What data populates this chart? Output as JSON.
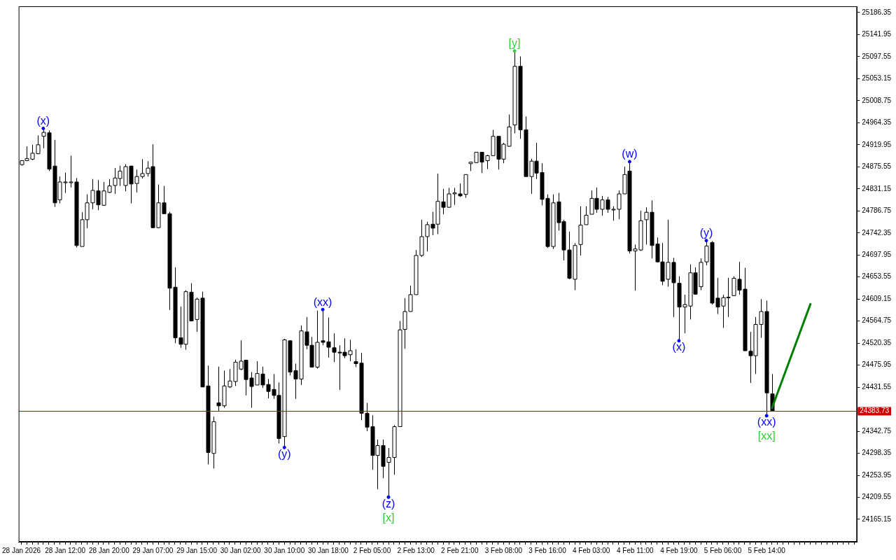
{
  "chart_data": {
    "type": "candlestick",
    "categories": [
      "28 Jan 2026",
      null,
      null,
      null,
      null,
      null,
      null,
      null,
      "28 Jan 12:00",
      null,
      null,
      null,
      null,
      null,
      null,
      null,
      "28 Jan 20:00",
      null,
      null,
      null,
      null,
      null,
      null,
      null,
      "29 Jan 07:00",
      null,
      null,
      null,
      null,
      null,
      null,
      null,
      "29 Jan 15:00",
      null,
      null,
      null,
      null,
      null,
      null,
      null,
      "30 Jan 02:00",
      null,
      null,
      null,
      null,
      null,
      null,
      null,
      "30 Jan 10:00",
      null,
      null,
      null,
      null,
      null,
      null,
      null,
      "30 Jan 18:00",
      null,
      null,
      null,
      null,
      null,
      null,
      null,
      "2 Feb 05:00",
      null,
      null,
      null,
      null,
      null,
      null,
      null,
      "2 Feb 13:00",
      null,
      null,
      null,
      null,
      null,
      null,
      null,
      "2 Feb 21:00",
      null,
      null,
      null,
      null,
      null,
      null,
      null,
      "3 Feb 08:00",
      null,
      null,
      null,
      null,
      null,
      null,
      null,
      "3 Feb 16:00",
      null,
      null,
      null,
      null,
      null,
      null,
      null,
      "4 Feb 03:00",
      null,
      null,
      null,
      null,
      null,
      null,
      null,
      "4 Feb 11:00",
      null,
      null,
      null,
      null,
      null,
      null,
      null,
      "4 Feb 19:00",
      null,
      null,
      null,
      null,
      null,
      null,
      null,
      "5 Feb 06:00",
      null,
      null,
      null,
      null,
      null,
      null,
      null,
      "5 Feb 14:00",
      null,
      null,
      null,
      null,
      null,
      null,
      null,
      null,
      null,
      null,
      null,
      null,
      null,
      null,
      null,
      null
    ],
    "ohlc": [
      [
        24880,
        24889,
        24878,
        24888
      ],
      [
        24888,
        24917,
        24887,
        24892
      ],
      [
        24891,
        24920,
        24889,
        24903
      ],
      [
        24902,
        24939,
        24901,
        24920
      ],
      [
        24937,
        24953,
        24913,
        24945
      ],
      [
        24944,
        24949,
        24867,
        24871
      ],
      [
        24877,
        24930,
        24795,
        24803
      ],
      [
        24809,
        24856,
        24802,
        24845
      ],
      [
        24845,
        24864,
        24823,
        24845
      ],
      [
        24845,
        24898,
        24834,
        24845
      ],
      [
        24845,
        24853,
        24713,
        24717
      ],
      [
        24715,
        24784,
        24715,
        24769
      ],
      [
        24769,
        24820,
        24752,
        24803
      ],
      [
        24803,
        24851,
        24790,
        24828
      ],
      [
        24827,
        24849,
        24788,
        24799
      ],
      [
        24798,
        24845,
        24798,
        24827
      ],
      [
        24824,
        24851,
        24823,
        24837
      ],
      [
        24838,
        24873,
        24821,
        24853
      ],
      [
        24852,
        24878,
        24837,
        24867
      ],
      [
        24838,
        24881,
        24826,
        24876
      ],
      [
        24877,
        24878,
        24802,
        24841
      ],
      [
        24842,
        24870,
        24824,
        24856
      ],
      [
        24856,
        24891,
        24852,
        24862
      ],
      [
        24862,
        24887,
        24856,
        24873
      ],
      [
        24876,
        24921,
        24752,
        24753
      ],
      [
        24753,
        24840,
        24752,
        24803
      ],
      [
        24803,
        24837,
        24781,
        24781
      ],
      [
        24781,
        24785,
        24587,
        24631
      ],
      [
        24633,
        24673,
        24520,
        24531
      ],
      [
        24531,
        24594,
        24511,
        24518
      ],
      [
        24518,
        24627,
        24507,
        24624
      ],
      [
        24623,
        24641,
        24565,
        24565
      ],
      [
        24568,
        24612,
        24543,
        24609
      ],
      [
        24611,
        24624,
        24432,
        24432
      ],
      [
        24434,
        24475,
        24276,
        24300
      ],
      [
        24298,
        24372,
        24268,
        24362
      ],
      [
        24400,
        24473,
        24383,
        24394
      ],
      [
        24394,
        24465,
        24390,
        24434
      ],
      [
        24432,
        24468,
        24430,
        24444
      ],
      [
        24443,
        24487,
        24434,
        24482
      ],
      [
        24468,
        24526,
        24466,
        24484
      ],
      [
        24486,
        24487,
        24415,
        24447
      ],
      [
        24450,
        24462,
        24390,
        24433
      ],
      [
        24436,
        24484,
        24436,
        24459
      ],
      [
        24458,
        24473,
        24430,
        24436
      ],
      [
        24437,
        24448,
        24409,
        24423
      ],
      [
        24427,
        24458,
        24408,
        24415
      ],
      [
        24415,
        24441,
        24318,
        24328
      ],
      [
        24332,
        24529,
        24310,
        24527
      ],
      [
        24525,
        24526,
        24455,
        24462
      ],
      [
        24465,
        24479,
        24408,
        24448
      ],
      [
        24448,
        24556,
        24436,
        24545
      ],
      [
        24543,
        24573,
        24508,
        24516
      ],
      [
        24516,
        24533,
        24472,
        24472
      ],
      [
        24472,
        24586,
        24469,
        24522
      ],
      [
        24525,
        24588,
        24516,
        24522
      ],
      [
        24523,
        24572,
        24491,
        24512
      ],
      [
        24511,
        24540,
        24482,
        24502
      ],
      [
        24502,
        24516,
        24426,
        24501
      ],
      [
        24502,
        24530,
        24490,
        24495
      ],
      [
        24497,
        24527,
        24484,
        24505
      ],
      [
        24483,
        24508,
        24472,
        24479
      ],
      [
        24480,
        24501,
        24365,
        24379
      ],
      [
        24379,
        24400,
        24343,
        24351
      ],
      [
        24352,
        24375,
        24265,
        24294
      ],
      [
        24294,
        24326,
        24226,
        24314
      ],
      [
        24314,
        24326,
        24248,
        24272
      ],
      [
        24280,
        24309,
        24210,
        24290
      ],
      [
        24290,
        24355,
        24255,
        24352
      ],
      [
        24352,
        24565,
        24352,
        24547
      ],
      [
        24548,
        24611,
        24509,
        24584
      ],
      [
        24584,
        24636,
        24584,
        24618
      ],
      [
        24618,
        24708,
        24618,
        24697
      ],
      [
        24697,
        24769,
        24694,
        24735
      ],
      [
        24735,
        24765,
        24705,
        24759
      ],
      [
        24760,
        24785,
        24738,
        24752
      ],
      [
        24760,
        24862,
        24740,
        24806
      ],
      [
        24805,
        24831,
        24780,
        24794
      ],
      [
        24794,
        24833,
        24794,
        24821
      ],
      [
        24821,
        24833,
        24799,
        24823
      ],
      [
        24821,
        24842,
        24815,
        24817
      ],
      [
        24820,
        24860,
        24813,
        24860
      ],
      [
        24882,
        24885,
        24867,
        24885
      ],
      [
        24884,
        24905,
        24884,
        24905
      ],
      [
        24905,
        24905,
        24863,
        24885
      ],
      [
        24888,
        24900,
        24871,
        24898
      ],
      [
        24898,
        24950,
        24898,
        24937
      ],
      [
        24937,
        24937,
        24870,
        24891
      ],
      [
        24891,
        24924,
        24883,
        24921
      ],
      [
        24917,
        24981,
        24916,
        24956
      ],
      [
        24960,
        25109,
        24943,
        25078
      ],
      [
        25078,
        25098,
        24932,
        24950
      ],
      [
        24950,
        24977,
        24856,
        24856
      ],
      [
        24856,
        24892,
        24821,
        24887
      ],
      [
        24887,
        24924,
        24851,
        24863
      ],
      [
        24864,
        24883,
        24798,
        24810
      ],
      [
        24812,
        24820,
        24712,
        24715
      ],
      [
        24715,
        24820,
        24710,
        24803
      ],
      [
        24805,
        24823,
        24747,
        24763
      ],
      [
        24765,
        24769,
        24687,
        24708
      ],
      [
        24708,
        24745,
        24649,
        24651
      ],
      [
        24649,
        24722,
        24627,
        24717
      ],
      [
        24719,
        24796,
        24697,
        24758
      ],
      [
        24759,
        24796,
        24759,
        24778
      ],
      [
        24780,
        24828,
        24780,
        24812
      ],
      [
        24812,
        24834,
        24783,
        24790
      ],
      [
        24790,
        24817,
        24777,
        24809
      ],
      [
        24809,
        24815,
        24783,
        24790
      ],
      [
        24790,
        24796,
        24767,
        24790
      ],
      [
        24790,
        24828,
        24770,
        24821
      ],
      [
        24821,
        24876,
        24821,
        24860
      ],
      [
        24867,
        24886,
        24701,
        24706
      ],
      [
        24706,
        24719,
        24626,
        24710
      ],
      [
        24708,
        24787,
        24706,
        24767
      ],
      [
        24769,
        24794,
        24719,
        24784
      ],
      [
        24784,
        24808,
        24691,
        24717
      ],
      [
        24720,
        24733,
        24683,
        24684
      ],
      [
        24684,
        24722,
        24637,
        24645
      ],
      [
        24649,
        24769,
        24634,
        24683
      ],
      [
        24683,
        24692,
        24573,
        24642
      ],
      [
        24641,
        24655,
        24525,
        24593
      ],
      [
        24593,
        24618,
        24540,
        24598
      ],
      [
        24595,
        24679,
        24568,
        24662
      ],
      [
        24662,
        24673,
        24618,
        24619
      ],
      [
        24634,
        24691,
        24627,
        24683
      ],
      [
        24684,
        24727,
        24677,
        24716
      ],
      [
        24723,
        24726,
        24598,
        24601
      ],
      [
        24611,
        24652,
        24579,
        24593
      ],
      [
        24595,
        24618,
        24551,
        24612
      ],
      [
        24613,
        24652,
        24573,
        24613
      ],
      [
        24616,
        24655,
        24615,
        24651
      ],
      [
        24649,
        24684,
        24618,
        24627
      ],
      [
        24629,
        24672,
        24505,
        24505
      ],
      [
        24504,
        24543,
        24440,
        24495
      ],
      [
        24495,
        24573,
        24458,
        24558
      ],
      [
        24558,
        24609,
        24531,
        24584
      ],
      [
        24584,
        24606,
        24374,
        24420
      ],
      [
        24418,
        24458,
        24383,
        24384
      ],
      null,
      null,
      null,
      null,
      null,
      null,
      null,
      null,
      null,
      null,
      null,
      null,
      null,
      null,
      null
    ],
    "series": [
      {
        "type": "scatter",
        "color": "#0000ff",
        "marker": "circle",
        "values": [
          null,
          null,
          null,
          null,
          24953,
          null,
          null,
          null,
          null,
          null,
          null,
          null,
          null,
          null,
          null,
          null,
          null,
          null,
          null,
          null,
          null,
          null,
          null,
          null,
          null,
          null,
          null,
          null,
          null,
          null,
          null,
          null,
          null,
          null,
          null,
          null,
          null,
          null,
          null,
          null,
          null,
          null,
          null,
          null,
          null,
          null,
          null,
          null,
          24310,
          null,
          null,
          null,
          null,
          null,
          null,
          24588,
          null,
          null,
          null,
          null,
          null,
          null,
          null,
          null,
          null,
          null,
          null,
          24210,
          null,
          null,
          null,
          null,
          null,
          null,
          null,
          null,
          null,
          null,
          null,
          null,
          null,
          null,
          null,
          null,
          null,
          null,
          null,
          null,
          null,
          null,
          null,
          null,
          null,
          null,
          null,
          null,
          null,
          null,
          null,
          null,
          null,
          null,
          null,
          null,
          null,
          null,
          null,
          null,
          null,
          null,
          null,
          24886,
          null,
          null,
          null,
          null,
          null,
          null,
          null,
          null,
          24525,
          null,
          null,
          null,
          null,
          24727,
          null,
          null,
          null,
          null,
          null,
          null,
          null,
          null,
          null,
          null,
          24374,
          null,
          null,
          null,
          null,
          null,
          null,
          null,
          null,
          null,
          null,
          null,
          null,
          null,
          null,
          null,
          null
        ],
        "value_labels": [
          null,
          null,
          null,
          null,
          "(x)",
          null,
          null,
          null,
          null,
          null,
          null,
          null,
          null,
          null,
          null,
          null,
          null,
          null,
          null,
          null,
          null,
          null,
          null,
          null,
          null,
          null,
          null,
          null,
          null,
          null,
          null,
          null,
          null,
          null,
          null,
          null,
          null,
          null,
          null,
          null,
          null,
          null,
          null,
          null,
          null,
          null,
          null,
          null,
          "(y)",
          null,
          null,
          null,
          null,
          null,
          null,
          "(xx)",
          null,
          null,
          null,
          null,
          null,
          null,
          null,
          null,
          null,
          null,
          null,
          "(z)",
          null,
          null,
          null,
          null,
          null,
          null,
          null,
          null,
          null,
          null,
          null,
          null,
          null,
          null,
          null,
          null,
          null,
          null,
          null,
          null,
          null,
          null,
          null,
          null,
          null,
          null,
          null,
          null,
          null,
          null,
          null,
          null,
          null,
          null,
          null,
          null,
          null,
          null,
          null,
          null,
          null,
          null,
          null,
          "(w)",
          null,
          null,
          null,
          null,
          null,
          null,
          null,
          null,
          "(x)",
          null,
          null,
          null,
          null,
          "(y)",
          null,
          null,
          null,
          null,
          null,
          null,
          null,
          null,
          null,
          null,
          "(xx)",
          null,
          null,
          null,
          null,
          null,
          null,
          null,
          null,
          null,
          null,
          null,
          null,
          null,
          null,
          null,
          null
        ]
      },
      {
        "type": "scatter",
        "color": "#32cd32",
        "marker": "circle",
        "values": [
          null,
          null,
          null,
          null,
          null,
          null,
          null,
          null,
          null,
          null,
          null,
          null,
          null,
          null,
          null,
          null,
          null,
          null,
          null,
          null,
          null,
          null,
          null,
          null,
          null,
          null,
          null,
          null,
          null,
          null,
          null,
          null,
          null,
          null,
          null,
          null,
          null,
          null,
          null,
          null,
          null,
          null,
          null,
          null,
          null,
          null,
          null,
          null,
          null,
          null,
          null,
          null,
          null,
          null,
          null,
          null,
          null,
          null,
          null,
          null,
          null,
          null,
          null,
          null,
          null,
          null,
          null,
          24210,
          null,
          null,
          null,
          null,
          null,
          null,
          null,
          null,
          null,
          null,
          null,
          null,
          null,
          null,
          null,
          null,
          null,
          null,
          null,
          null,
          null,
          null,
          25109,
          null,
          null,
          null,
          null,
          null,
          null,
          null,
          null,
          null,
          null,
          null,
          null,
          null,
          null,
          null,
          null,
          null,
          null,
          null,
          null,
          null,
          null,
          null,
          null,
          null,
          null,
          null,
          null,
          null,
          null,
          null,
          null,
          null,
          null,
          null,
          null,
          null,
          null,
          null,
          null,
          null,
          null,
          null,
          null,
          null,
          24374,
          null,
          null,
          null,
          null,
          null,
          null,
          null,
          null,
          null,
          null,
          null,
          null,
          null,
          null,
          null,
          null
        ],
        "value_labels": [
          null,
          null,
          null,
          null,
          null,
          null,
          null,
          null,
          null,
          null,
          null,
          null,
          null,
          null,
          null,
          null,
          null,
          null,
          null,
          null,
          null,
          null,
          null,
          null,
          null,
          null,
          null,
          null,
          null,
          null,
          null,
          null,
          null,
          null,
          null,
          null,
          null,
          null,
          null,
          null,
          null,
          null,
          null,
          null,
          null,
          null,
          null,
          null,
          null,
          null,
          null,
          null,
          null,
          null,
          null,
          null,
          null,
          null,
          null,
          null,
          null,
          null,
          null,
          null,
          null,
          null,
          null,
          "[x]",
          null,
          null,
          null,
          null,
          null,
          null,
          null,
          null,
          null,
          null,
          null,
          null,
          null,
          null,
          null,
          null,
          null,
          null,
          null,
          null,
          null,
          null,
          "[y]",
          null,
          null,
          null,
          null,
          null,
          null,
          null,
          null,
          null,
          null,
          null,
          null,
          null,
          null,
          null,
          null,
          null,
          null,
          null,
          null,
          null,
          null,
          null,
          null,
          null,
          null,
          null,
          null,
          null,
          null,
          null,
          null,
          null,
          null,
          null,
          null,
          null,
          null,
          null,
          null,
          null,
          null,
          null,
          null,
          null,
          "[xx]",
          null,
          null,
          null,
          null,
          null,
          null,
          null,
          null,
          null,
          null,
          null,
          null,
          null,
          null,
          null,
          null
        ]
      },
      {
        "type": "line",
        "color": "#008000",
        "values": [
          null,
          null,
          null,
          null,
          null,
          null,
          null,
          null,
          null,
          null,
          null,
          null,
          null,
          null,
          null,
          null,
          null,
          null,
          null,
          null,
          null,
          null,
          null,
          null,
          null,
          null,
          null,
          null,
          null,
          null,
          null,
          null,
          null,
          null,
          null,
          null,
          null,
          null,
          null,
          null,
          null,
          null,
          null,
          null,
          null,
          null,
          null,
          null,
          null,
          null,
          null,
          null,
          null,
          null,
          null,
          null,
          null,
          null,
          null,
          null,
          null,
          null,
          null,
          null,
          null,
          null,
          null,
          null,
          null,
          null,
          null,
          null,
          null,
          null,
          null,
          null,
          null,
          null,
          null,
          null,
          null,
          null,
          null,
          null,
          null,
          null,
          null,
          null,
          null,
          null,
          null,
          null,
          null,
          null,
          null,
          null,
          null,
          null,
          null,
          null,
          null,
          null,
          null,
          null,
          null,
          null,
          null,
          null,
          null,
          null,
          null,
          null,
          null,
          null,
          null,
          null,
          null,
          null,
          null,
          null,
          null,
          null,
          null,
          null,
          null,
          null,
          null,
          null,
          null,
          null,
          null,
          null,
          null,
          null,
          null,
          null,
          null,
          24390,
          null,
          null,
          null,
          null,
          null,
          null,
          24599,
          null,
          null,
          null,
          null,
          null,
          null,
          null,
          null
        ]
      }
    ],
    "ylim": [
      24120,
      25199
    ],
    "yticks": [
      24165.15,
      24209.55,
      24253.95,
      24298.35,
      24342.75,
      24431.55,
      24475.95,
      24520.35,
      24564.75,
      24609.15,
      24653.55,
      24697.95,
      24742.35,
      24786.75,
      24831.15,
      24875.55,
      24919.95,
      24964.35,
      25008.75,
      25053.15,
      25097.55,
      25141.95,
      25186.35
    ],
    "ref_lines": [
      {
        "axis": "y",
        "value": 24383.73,
        "label": "24383.73",
        "color": "#cc0000"
      }
    ],
    "grid": false,
    "legend": false
  }
}
